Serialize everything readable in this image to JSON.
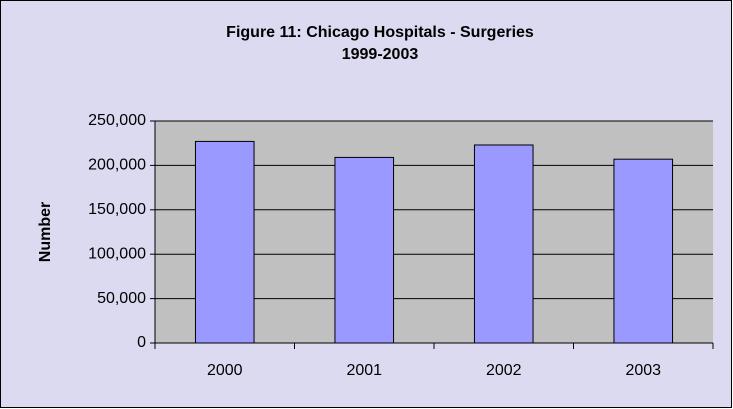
{
  "chart_data": {
    "type": "bar",
    "title": "Figure 11:  Chicago Hospitals - Surgeries",
    "subtitle": "1999-2003",
    "y_label": "Number",
    "categories": [
      "2000",
      "2001",
      "2002",
      "2003"
    ],
    "values": [
      227000,
      209000,
      223000,
      207000
    ],
    "color": "#9999ff",
    "ylim": [
      0,
      250000
    ],
    "yticks": [
      0,
      {
        "value": 50000,
        "label": "50,000"
      },
      {
        "value": 100000,
        "label": "100,000"
      },
      {
        "value": 150000,
        "label": "150,000"
      },
      {
        "value": 200000,
        "label": "200,000"
      },
      {
        "value": 250000,
        "label": "250,000"
      }
    ],
    "grid": true
  }
}
